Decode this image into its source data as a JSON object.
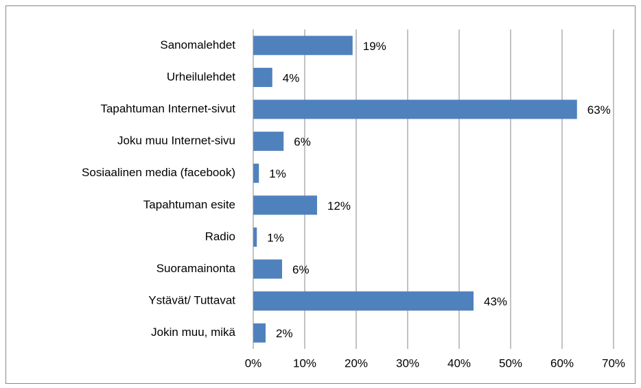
{
  "chart_data": {
    "type": "bar",
    "orientation": "horizontal",
    "categories": [
      "Sanomalehdet",
      "Urheilulehdet",
      "Tapahtuman Internet-sivut",
      "Joku muu Internet-sivu",
      "Sosiaalinen media (facebook)",
      "Tapahtuman esite",
      "Radio",
      "Suoramainonta",
      "Ystävät/ Tuttavat",
      "Jokin muu, mikä"
    ],
    "values": [
      19.3,
      3.7,
      62.9,
      5.9,
      1.1,
      12.4,
      0.7,
      5.6,
      42.8,
      2.4
    ],
    "value_labels": [
      "19%",
      "4%",
      "63%",
      "6%",
      "1%",
      "12%",
      "1%",
      "6%",
      "43%",
      "2%"
    ],
    "color": "#4f81bd",
    "xlim": [
      0,
      70
    ],
    "xticks": [
      {
        "value": 0,
        "label": "0%"
      },
      {
        "value": 10,
        "label": "10%"
      },
      {
        "value": 20,
        "label": "20%"
      },
      {
        "value": 30,
        "label": "30%"
      },
      {
        "value": 40,
        "label": "40%"
      },
      {
        "value": 50,
        "label": "50%"
      },
      {
        "value": 60,
        "label": "60%"
      },
      {
        "value": 70,
        "label": "70%"
      }
    ],
    "grid": true
  }
}
